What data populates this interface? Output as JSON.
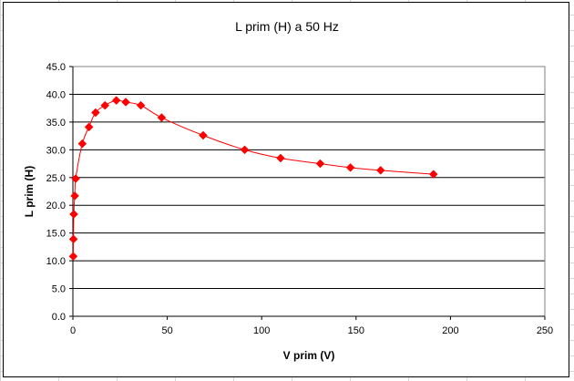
{
  "chart_data": {
    "type": "scatter",
    "title": "L prim (H) a 50 Hz",
    "xlabel": "V prim (V)",
    "ylabel": "L prim (H)",
    "xlim": [
      0,
      250
    ],
    "ylim": [
      0,
      45
    ],
    "x_ticks": [
      "0",
      "50",
      "100",
      "150",
      "200",
      "250"
    ],
    "y_ticks": [
      "0.0",
      "5.0",
      "10.0",
      "15.0",
      "20.0",
      "25.0",
      "30.0",
      "35.0",
      "40.0",
      "45.0"
    ],
    "grid": "horizontal",
    "legend": "none",
    "marker": "diamond",
    "line_style": "smoothed",
    "color": "#ff0000",
    "series": [
      {
        "x": [
          0.2,
          0.3,
          0.5,
          1.0,
          1.5,
          5.0,
          8.5,
          12.0,
          17.0,
          23.0,
          28.0,
          36.0,
          47.0,
          69.0,
          91.0,
          110.0,
          131.0,
          147.0,
          163.0,
          191.0
        ],
        "y": [
          10.8,
          13.9,
          18.4,
          21.7,
          24.8,
          31.1,
          34.1,
          36.7,
          38.0,
          38.9,
          38.6,
          38.0,
          35.8,
          32.6,
          30.0,
          28.5,
          27.5,
          26.8,
          26.3,
          25.6
        ]
      }
    ]
  }
}
